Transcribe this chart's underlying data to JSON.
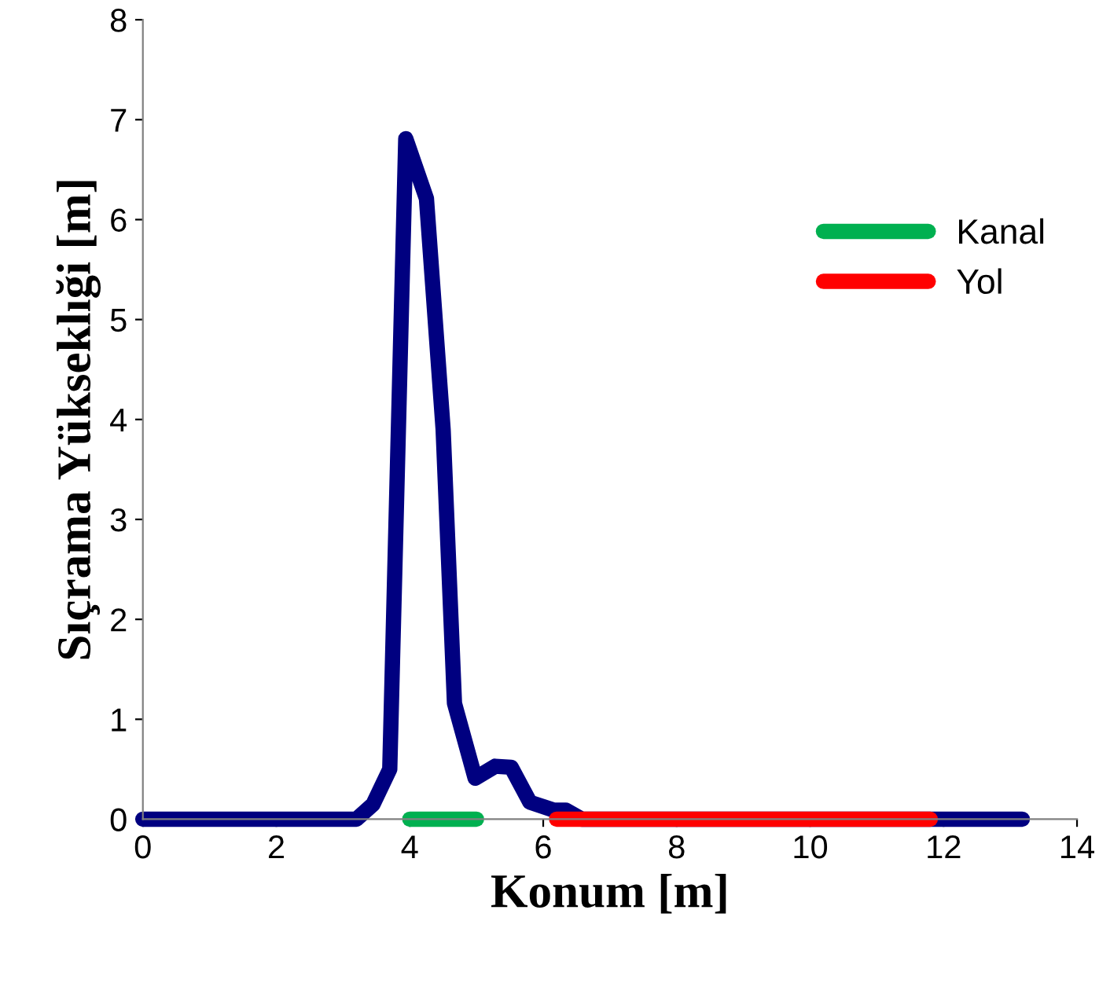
{
  "chart_data": {
    "type": "line",
    "xlabel": "Konum [m]",
    "ylabel": "Sıçrama Yükseklıği [m]",
    "xlim": [
      0,
      14
    ],
    "xticks": [
      0,
      2,
      4,
      6,
      8,
      10,
      12,
      14
    ],
    "ylim": [
      0,
      8
    ],
    "yticks": [
      0,
      1,
      2,
      3,
      4,
      5,
      6,
      7,
      8
    ],
    "grid": false,
    "legend": "right",
    "marker": "none",
    "line_style": "solid",
    "series": [
      {
        "color": "#000080",
        "x": [
          0,
          3.2,
          3.45,
          3.7,
          3.94,
          4.25,
          4.5,
          4.67,
          4.98,
          5.28,
          5.52,
          5.8,
          6.16,
          6.34,
          6.58,
          13.18
        ],
        "values": [
          0,
          0,
          0.15,
          0.5,
          6.81,
          6.21,
          3.9,
          1.16,
          0.41,
          0.53,
          0.52,
          0.17,
          0.09,
          0.09,
          0,
          0
        ]
      },
      {
        "name": "Kanal",
        "color": "#00b050",
        "x": [
          4.0,
          5.0
        ],
        "values": [
          0,
          0
        ]
      },
      {
        "name": "Yol",
        "color": "#ff0000",
        "x": [
          6.2,
          11.8
        ],
        "values": [
          0,
          0
        ]
      }
    ]
  }
}
